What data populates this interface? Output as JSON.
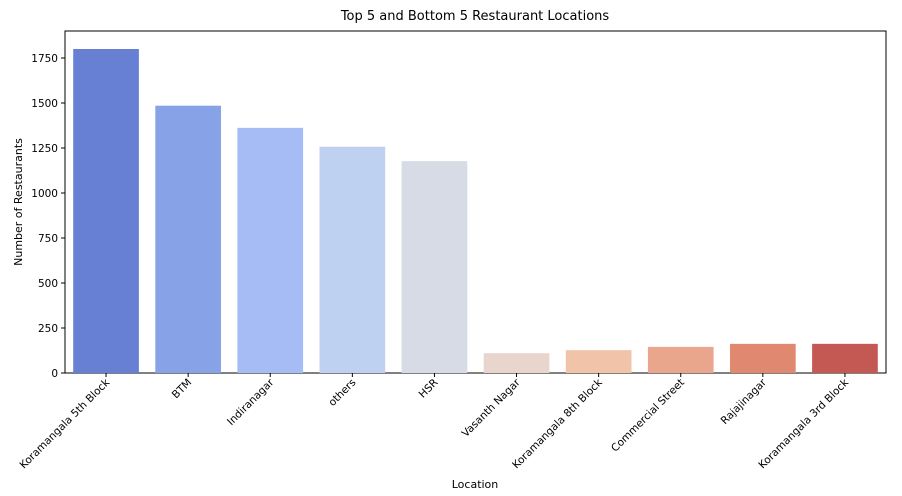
{
  "chart_data": {
    "type": "bar",
    "title": "Top 5 and Bottom 5 Restaurant Locations",
    "xlabel": "Location",
    "ylabel": "Number of Restaurants",
    "categories": [
      "Koramangala 5th Block",
      "BTM",
      "Indiranagar",
      "others",
      "HSR",
      "Vasanth Nagar",
      "Koramangala 8th Block",
      "Commercial Street",
      "Rajajinagar",
      "Koramangala 3rd Block"
    ],
    "values": [
      1800,
      1485,
      1362,
      1257,
      1177,
      110,
      127,
      145,
      162,
      162
    ],
    "colors": [
      "#6880d4",
      "#87a2e6",
      "#a5bdf4",
      "#bfd1f1",
      "#d6dbe6",
      "#e8d6cc",
      "#f1c4aa",
      "#eaa68c",
      "#e08970",
      "#c45852"
    ],
    "ylim": [
      0,
      1900
    ],
    "yticks": [
      0,
      250,
      500,
      750,
      1000,
      1250,
      1500,
      1750
    ],
    "grid": false,
    "legend": "none"
  }
}
